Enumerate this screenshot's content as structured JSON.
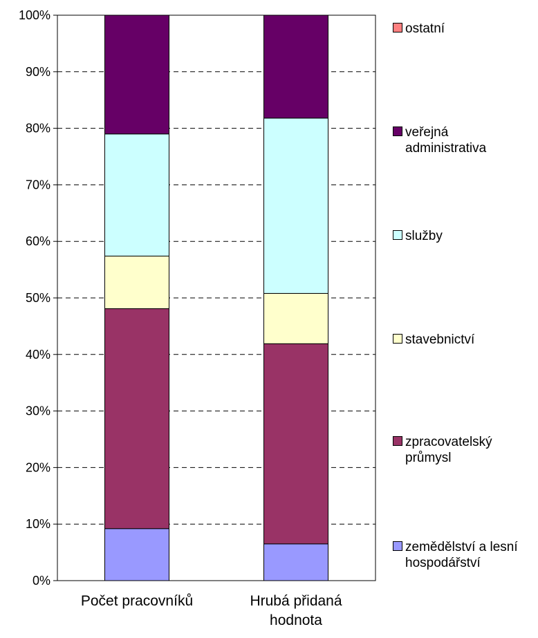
{
  "chart_data": {
    "type": "bar",
    "stacked": true,
    "percent": true,
    "categories": [
      "Počet pracovníků",
      "Hrubá přidaná hodnota"
    ],
    "category_display": [
      "Počet pracovníků",
      "Hrubá přidaná\nhodnota"
    ],
    "y_ticks": [
      "0%",
      "10%",
      "20%",
      "30%",
      "40%",
      "50%",
      "60%",
      "70%",
      "80%",
      "90%",
      "100%"
    ],
    "ylim": [
      0,
      100
    ],
    "grid": true,
    "legend_position": "right",
    "series": [
      {
        "name": "zemědělství a lesní hospodářství",
        "legend_display": "zemědělství a lesní\nhospodářství",
        "color": "#9999FF",
        "values": [
          9.2,
          6.5
        ]
      },
      {
        "name": "zpracovatelský průmysl",
        "legend_display": "zpracovatelský\nprůmysl",
        "color": "#993366",
        "values": [
          38.9,
          35.4
        ]
      },
      {
        "name": "stavebnictví",
        "legend_display": "stavebnictví",
        "color": "#FFFFCC",
        "values": [
          9.3,
          8.9
        ]
      },
      {
        "name": "služby",
        "legend_display": "služby",
        "color": "#CCFFFF",
        "values": [
          21.6,
          31.0
        ]
      },
      {
        "name": "veřejná administrativa",
        "legend_display": "veřejná\nadministrativa",
        "color": "#660066",
        "values": [
          21.0,
          18.2
        ]
      },
      {
        "name": "ostatní",
        "legend_display": "ostatní",
        "color": "#FF8080",
        "values": [
          0.0,
          0.0
        ]
      }
    ]
  }
}
